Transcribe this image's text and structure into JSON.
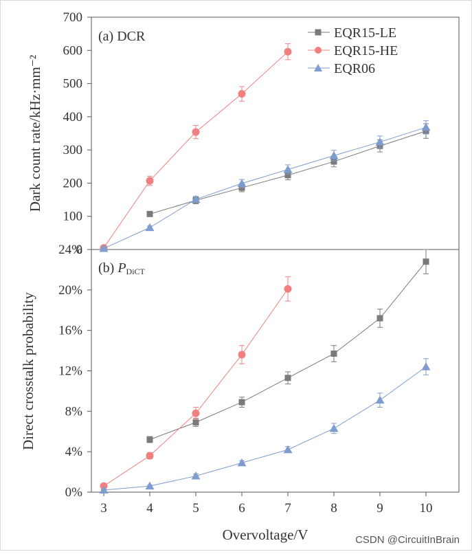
{
  "chart_data": [
    {
      "type": "line",
      "panel_label": "(a) DCR",
      "xlabel": "",
      "ylabel": "Dark count rate/kHz·mm⁻²",
      "ylim": [
        0,
        700
      ],
      "yticks": [
        0,
        100,
        200,
        300,
        400,
        500,
        600,
        700
      ],
      "ytick_labels": [
        "0",
        "100",
        "200",
        "300",
        "400",
        "500",
        "600",
        "700"
      ],
      "xlim": [
        3,
        10
      ],
      "legend_position": "top-right",
      "series": [
        {
          "name": "EQR15-LE",
          "marker": "square",
          "color": "#7a7a7a",
          "x": [
            4,
            5,
            6,
            7,
            8,
            9,
            10
          ],
          "values": [
            107,
            148,
            186,
            224,
            265,
            312,
            357
          ],
          "errors": [
            6,
            10,
            12,
            14,
            16,
            18,
            22
          ]
        },
        {
          "name": "EQR15-HE",
          "marker": "circle",
          "color": "#f08080",
          "x": [
            3,
            4,
            5,
            6,
            7
          ],
          "values": [
            5,
            207,
            354,
            469,
            596
          ],
          "errors": [
            3,
            14,
            20,
            22,
            24
          ]
        },
        {
          "name": "EQR06",
          "marker": "triangle",
          "color": "#7f9ccf",
          "x": [
            3,
            4,
            5,
            6,
            7,
            8,
            9,
            10
          ],
          "values": [
            3,
            66,
            151,
            199,
            241,
            283,
            324,
            368
          ],
          "errors": [
            2,
            5,
            9,
            12,
            14,
            16,
            18,
            20
          ]
        }
      ]
    },
    {
      "type": "line",
      "panel_label_prefix": "(b) ",
      "panel_label_main": "P",
      "panel_label_sub": "DiCT",
      "xlabel": "Overvoltage/V",
      "ylabel": "Direct crosstalk probability",
      "ylim": [
        0,
        24
      ],
      "yticks": [
        0,
        4,
        8,
        12,
        16,
        20,
        24
      ],
      "ytick_labels": [
        "0%",
        "4%",
        "8%",
        "12%",
        "16%",
        "20%",
        "24%"
      ],
      "xlim": [
        3,
        10
      ],
      "xticks": [
        3,
        4,
        5,
        6,
        7,
        8,
        9,
        10
      ],
      "xtick_labels": [
        "3",
        "4",
        "5",
        "6",
        "7",
        "8",
        "9",
        "10"
      ],
      "series": [
        {
          "name": "EQR15-LE",
          "marker": "square",
          "color": "#7a7a7a",
          "x": [
            4,
            5,
            6,
            7,
            8,
            9,
            10
          ],
          "values": [
            5.2,
            6.9,
            8.9,
            11.3,
            13.7,
            17.2,
            22.8
          ],
          "errors": [
            0.3,
            0.4,
            0.5,
            0.6,
            0.8,
            0.9,
            1.2
          ]
        },
        {
          "name": "EQR15-HE",
          "marker": "circle",
          "color": "#f08080",
          "x": [
            3,
            4,
            5,
            6,
            7
          ],
          "values": [
            0.6,
            3.6,
            7.8,
            13.6,
            20.1
          ],
          "errors": [
            0.1,
            0.3,
            0.6,
            0.9,
            1.2
          ]
        },
        {
          "name": "EQR06",
          "marker": "triangle",
          "color": "#7f9ccf",
          "x": [
            3,
            4,
            5,
            6,
            7,
            8,
            9,
            10
          ],
          "values": [
            0.2,
            0.6,
            1.6,
            2.9,
            4.2,
            6.3,
            9.1,
            12.4
          ],
          "errors": [
            0.05,
            0.1,
            0.2,
            0.2,
            0.3,
            0.5,
            0.7,
            0.8
          ]
        }
      ]
    }
  ],
  "watermark": "CSDN @CircuitInBrain"
}
